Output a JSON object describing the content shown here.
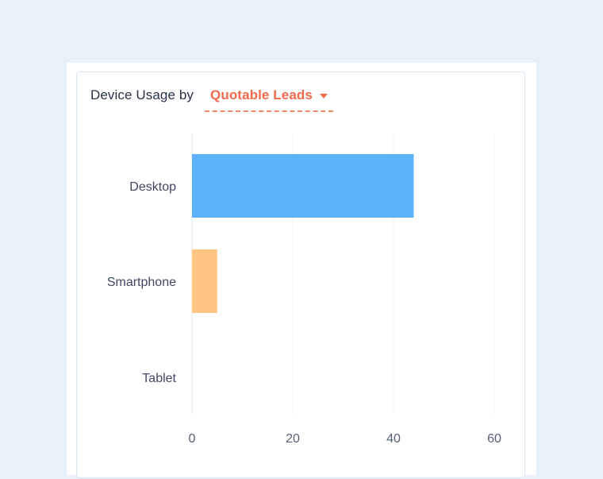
{
  "header": {
    "title": "Device Usage by",
    "metric_selector": {
      "selected": "Quotable Leads",
      "icon": "caret-down-icon",
      "color": "#f26a4b"
    }
  },
  "chart_data": {
    "type": "bar",
    "orientation": "horizontal",
    "categories": [
      "Desktop",
      "Smartphone",
      "Tablet"
    ],
    "values": [
      44,
      5,
      0
    ],
    "colors": [
      "#5bb2fb",
      "#ffc583",
      "#5bb2fb"
    ],
    "xlim": [
      0,
      60
    ],
    "xticks": [
      0,
      20,
      40,
      60
    ],
    "grid": true,
    "title": "",
    "xlabel": "",
    "ylabel": ""
  },
  "colors": {
    "background": "#e8f0fa",
    "card_border": "#d7e6f2",
    "gridline": "#edf1f5",
    "accent": "#f26a4b"
  }
}
